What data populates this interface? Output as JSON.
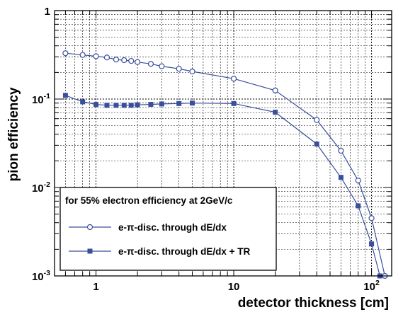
{
  "chart_data": {
    "type": "line",
    "title": "",
    "xlabel": "detector thickness [cm]",
    "ylabel": "pion efficiency",
    "x_scale": "log",
    "y_scale": "log",
    "xlim": [
      0.5,
      140
    ],
    "ylim": [
      0.001,
      1
    ],
    "grid": true,
    "x_ticks": [
      {
        "value": 1,
        "base": "1",
        "exp": ""
      },
      {
        "value": 10,
        "base": "10",
        "exp": ""
      },
      {
        "value": 100,
        "base": "10",
        "exp": "2"
      }
    ],
    "y_ticks": [
      {
        "value": 0.001,
        "base": "10",
        "exp": "-3"
      },
      {
        "value": 0.01,
        "base": "10",
        "exp": "-2"
      },
      {
        "value": 0.1,
        "base": "10",
        "exp": "-1"
      },
      {
        "value": 1,
        "base": "1",
        "exp": ""
      }
    ],
    "legend": {
      "position": "bottom-left",
      "header": "for 55% electron efficiency at 2GeV/c"
    },
    "series": [
      {
        "name": "e-π-disc. through dE/dx",
        "marker": "open-circle",
        "color": "#3a4f9c",
        "x": [
          0.6,
          0.8,
          1.0,
          1.2,
          1.4,
          1.6,
          1.8,
          2.0,
          2.5,
          3.0,
          4.0,
          5.0,
          10,
          20,
          40,
          60,
          80,
          100,
          125
        ],
        "y": [
          0.33,
          0.315,
          0.305,
          0.295,
          0.28,
          0.275,
          0.27,
          0.262,
          0.25,
          0.235,
          0.22,
          0.205,
          0.17,
          0.125,
          0.058,
          0.026,
          0.012,
          0.0045,
          0.001
        ]
      },
      {
        "name": "e-π-disc. through dE/dx + TR",
        "marker": "filled-square",
        "color": "#3a4f9c",
        "x": [
          0.6,
          0.8,
          1.0,
          1.2,
          1.4,
          1.6,
          1.8,
          2.0,
          2.5,
          3.0,
          4.0,
          5.0,
          10,
          20,
          40,
          60,
          80,
          100,
          115
        ],
        "y": [
          0.11,
          0.093,
          0.087,
          0.085,
          0.085,
          0.085,
          0.085,
          0.086,
          0.087,
          0.088,
          0.089,
          0.09,
          0.089,
          0.071,
          0.031,
          0.013,
          0.0062,
          0.0023,
          0.001
        ]
      }
    ]
  }
}
